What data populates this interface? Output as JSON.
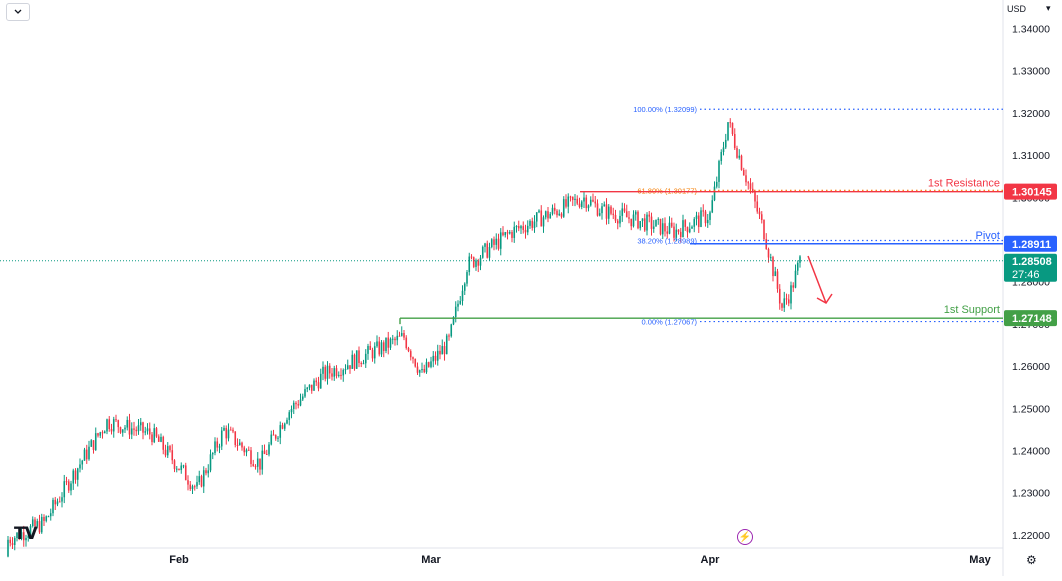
{
  "header": {
    "currency": "USD"
  },
  "chart_data": {
    "type": "candlestick",
    "x_axis": {
      "ticks": [
        "Feb",
        "Mar",
        "Apr",
        "May"
      ]
    },
    "y_axis": {
      "range": [
        1.217,
        1.345
      ],
      "ticks": [
        "1.34000",
        "1.33000",
        "1.32000",
        "1.31000",
        "1.30000",
        "1.29000",
        "1.28000",
        "1.27000",
        "1.26000",
        "1.25000",
        "1.24000",
        "1.23000",
        "1.22000"
      ]
    },
    "colors": {
      "up": "#089981",
      "down": "#f23645",
      "support": "#388e3c",
      "resistance": "#e53935",
      "pivot": "#2962ff",
      "fib": "#2962ff",
      "fib_618": "#f57c00",
      "price_line": "#089981",
      "arrow": "#f23645"
    },
    "levels": [
      {
        "name": "1st Resistance",
        "value": 1.30145,
        "label": "1.30145",
        "color": "#f23645"
      },
      {
        "name": "Pivot",
        "value": 1.28911,
        "label": "1.28911",
        "color": "#2962ff"
      },
      {
        "name": "1st Support",
        "value": 1.27148,
        "label": "1.27148",
        "color": "#43a047"
      }
    ],
    "fibonacci": [
      {
        "text": "100.00% (1.32099)",
        "value": 1.32099
      },
      {
        "text": "61.80% (1.30177)",
        "value": 1.30177
      },
      {
        "text": "38.20% (1.28989)",
        "value": 1.28989
      },
      {
        "text": "0.00% (1.27067)",
        "value": 1.27067
      }
    ],
    "current_price": {
      "value": 1.28508,
      "label": "1.28508",
      "countdown": "27:46"
    },
    "candles_keypoints": [
      [
        "2025-01-13",
        1.219
      ],
      [
        "2025-01-17",
        1.223
      ],
      [
        "2025-01-21",
        1.237
      ],
      [
        "2025-01-24",
        1.247
      ],
      [
        "2025-01-29",
        1.244
      ],
      [
        "2025-02-03",
        1.231
      ],
      [
        "2025-02-06",
        1.245
      ],
      [
        "2025-02-10",
        1.237
      ],
      [
        "2025-02-13",
        1.249
      ],
      [
        "2025-02-17",
        1.258
      ],
      [
        "2025-02-21",
        1.262
      ],
      [
        "2025-02-26",
        1.267
      ],
      [
        "2025-02-28",
        1.258
      ],
      [
        "2025-03-03",
        1.266
      ],
      [
        "2025-03-05",
        1.284
      ],
      [
        "2025-03-10",
        1.292
      ],
      [
        "2025-03-13",
        1.295
      ],
      [
        "2025-03-18",
        1.3
      ],
      [
        "2025-03-20",
        1.297
      ],
      [
        "2025-03-25",
        1.294
      ],
      [
        "2025-03-28",
        1.292
      ],
      [
        "2025-04-01",
        1.296
      ],
      [
        "2025-04-03",
        1.318
      ],
      [
        "2025-04-07",
        1.292
      ],
      [
        "2025-04-09",
        1.274
      ],
      [
        "2025-04-10",
        1.278
      ],
      [
        "2025-04-11",
        1.2851
      ]
    ]
  }
}
